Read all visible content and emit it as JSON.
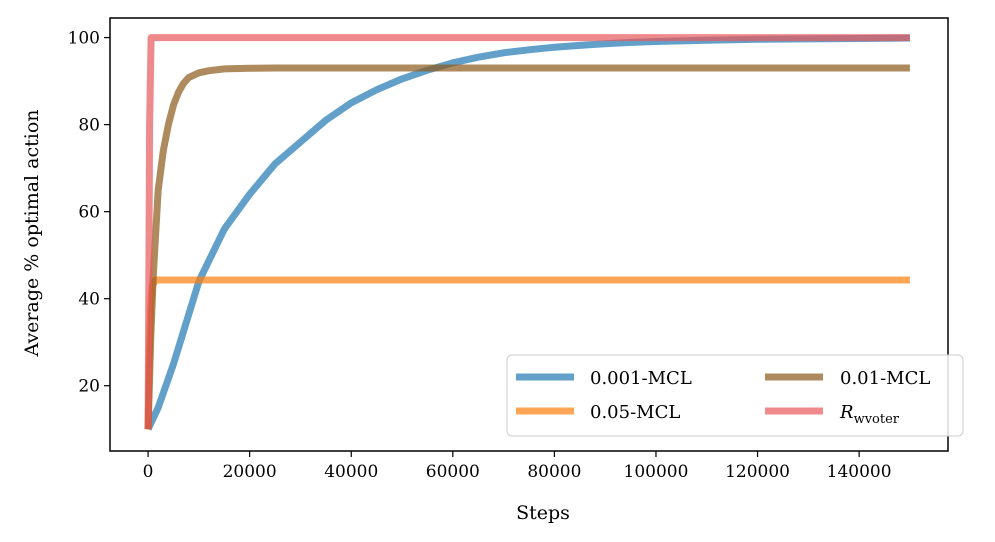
{
  "chart_data": {
    "type": "line",
    "title": "",
    "xlabel": "Steps",
    "ylabel": "Average % optimal action",
    "xlim": [
      -7500,
      157500
    ],
    "ylim": [
      5,
      104.5
    ],
    "xticks": [
      0,
      20000,
      40000,
      60000,
      80000,
      100000,
      120000,
      140000
    ],
    "xtick_labels": [
      "0",
      "20000",
      "40000",
      "60000",
      "80000",
      "100000",
      "120000",
      "140000"
    ],
    "yticks": [
      20,
      40,
      60,
      80,
      100
    ],
    "ytick_labels": [
      "20",
      "40",
      "60",
      "80",
      "100"
    ],
    "grid": false,
    "legend": {
      "placement": "lower-right",
      "columns": 2
    },
    "series": [
      {
        "name": "0.001-MCL",
        "legend_label": "0.001-MCL",
        "color": "#1f77b4",
        "x": [
          0,
          2000,
          5000,
          10000,
          15000,
          20000,
          25000,
          30000,
          35000,
          40000,
          45000,
          50000,
          55000,
          60000,
          65000,
          70000,
          75000,
          80000,
          85000,
          90000,
          95000,
          100000,
          110000,
          120000,
          130000,
          140000,
          150000
        ],
        "y": [
          10,
          15,
          25,
          44,
          56,
          64,
          71,
          76,
          81,
          85,
          88,
          90.5,
          92.5,
          94.2,
          95.5,
          96.5,
          97.2,
          97.8,
          98.2,
          98.6,
          98.9,
          99.1,
          99.4,
          99.6,
          99.7,
          99.8,
          99.9
        ]
      },
      {
        "name": "0.05-MCL",
        "legend_label": "0.05-MCL",
        "color": "#ff7f0e",
        "x": [
          0,
          200,
          500,
          800,
          1500,
          150000
        ],
        "y": [
          10,
          26,
          38,
          43,
          44.3,
          44.3
        ]
      },
      {
        "name": "0.01-MCL",
        "legend_label": "0.01-MCL",
        "color": "#8c5a1a",
        "x": [
          0,
          500,
          1000,
          2000,
          3000,
          4000,
          5000,
          6000,
          7000,
          8000,
          10000,
          12000,
          15000,
          20000,
          25000,
          150000
        ],
        "y": [
          10,
          30,
          45,
          65,
          74,
          80,
          84.5,
          87.5,
          89.5,
          90.8,
          91.9,
          92.4,
          92.8,
          92.95,
          93,
          93
        ]
      },
      {
        "name": "R_wvoter",
        "legend_label": "R",
        "legend_sub": "wvoter",
        "color": "#e8585b",
        "x": [
          0,
          300,
          600,
          150000
        ],
        "y": [
          10,
          80,
          100,
          100
        ]
      }
    ]
  }
}
